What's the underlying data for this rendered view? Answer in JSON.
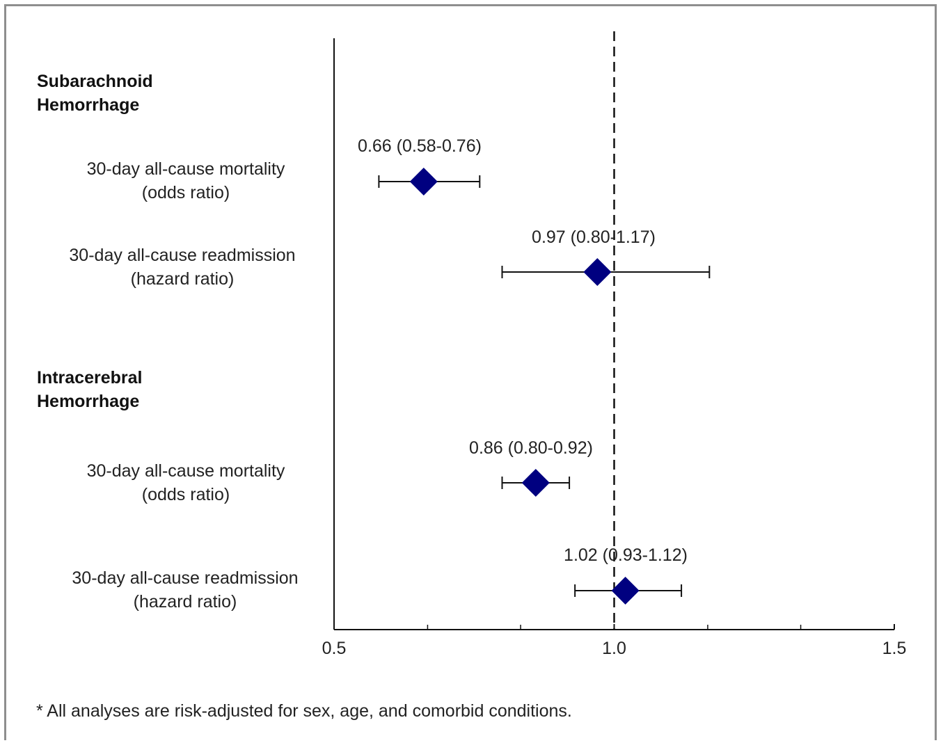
{
  "chart_data": {
    "type": "forest",
    "x_axis": {
      "range": [
        0.5,
        1.5
      ],
      "tick_labels": [
        "0.5",
        "1.0",
        "1.5"
      ],
      "minor_ticks": [
        0.667,
        0.833,
        1.167,
        1.333
      ],
      "reference_line": 1.0
    },
    "groups": [
      {
        "title_lines": [
          "Subarachnoid",
          "Hemorrhage"
        ],
        "rows": [
          {
            "label_lines": [
              "30-day all-cause mortality",
              "(odds ratio)"
            ],
            "estimate": 0.66,
            "lower": 0.58,
            "upper": 0.76,
            "ci_text": "0.66 (0.58-0.76)"
          },
          {
            "label_lines": [
              "30-day all-cause readmission",
              "(hazard ratio)"
            ],
            "estimate": 0.97,
            "lower": 0.8,
            "upper": 1.17,
            "ci_text": "0.97 (0.80-1.17)"
          }
        ]
      },
      {
        "title_lines": [
          "Intracerebral",
          "Hemorrhage"
        ],
        "rows": [
          {
            "label_lines": [
              "30-day all-cause mortality",
              "(odds ratio)"
            ],
            "estimate": 0.86,
            "lower": 0.8,
            "upper": 0.92,
            "ci_text": "0.86 (0.80-0.92)"
          },
          {
            "label_lines": [
              "30-day all-cause readmission",
              "(hazard ratio)"
            ],
            "estimate": 1.02,
            "lower": 0.93,
            "upper": 1.12,
            "ci_text": "1.02 (0.93-1.12)"
          }
        ]
      }
    ],
    "marker_color": "#000080"
  },
  "footnote": "* All analyses are risk-adjusted for sex, age, and comorbid conditions."
}
